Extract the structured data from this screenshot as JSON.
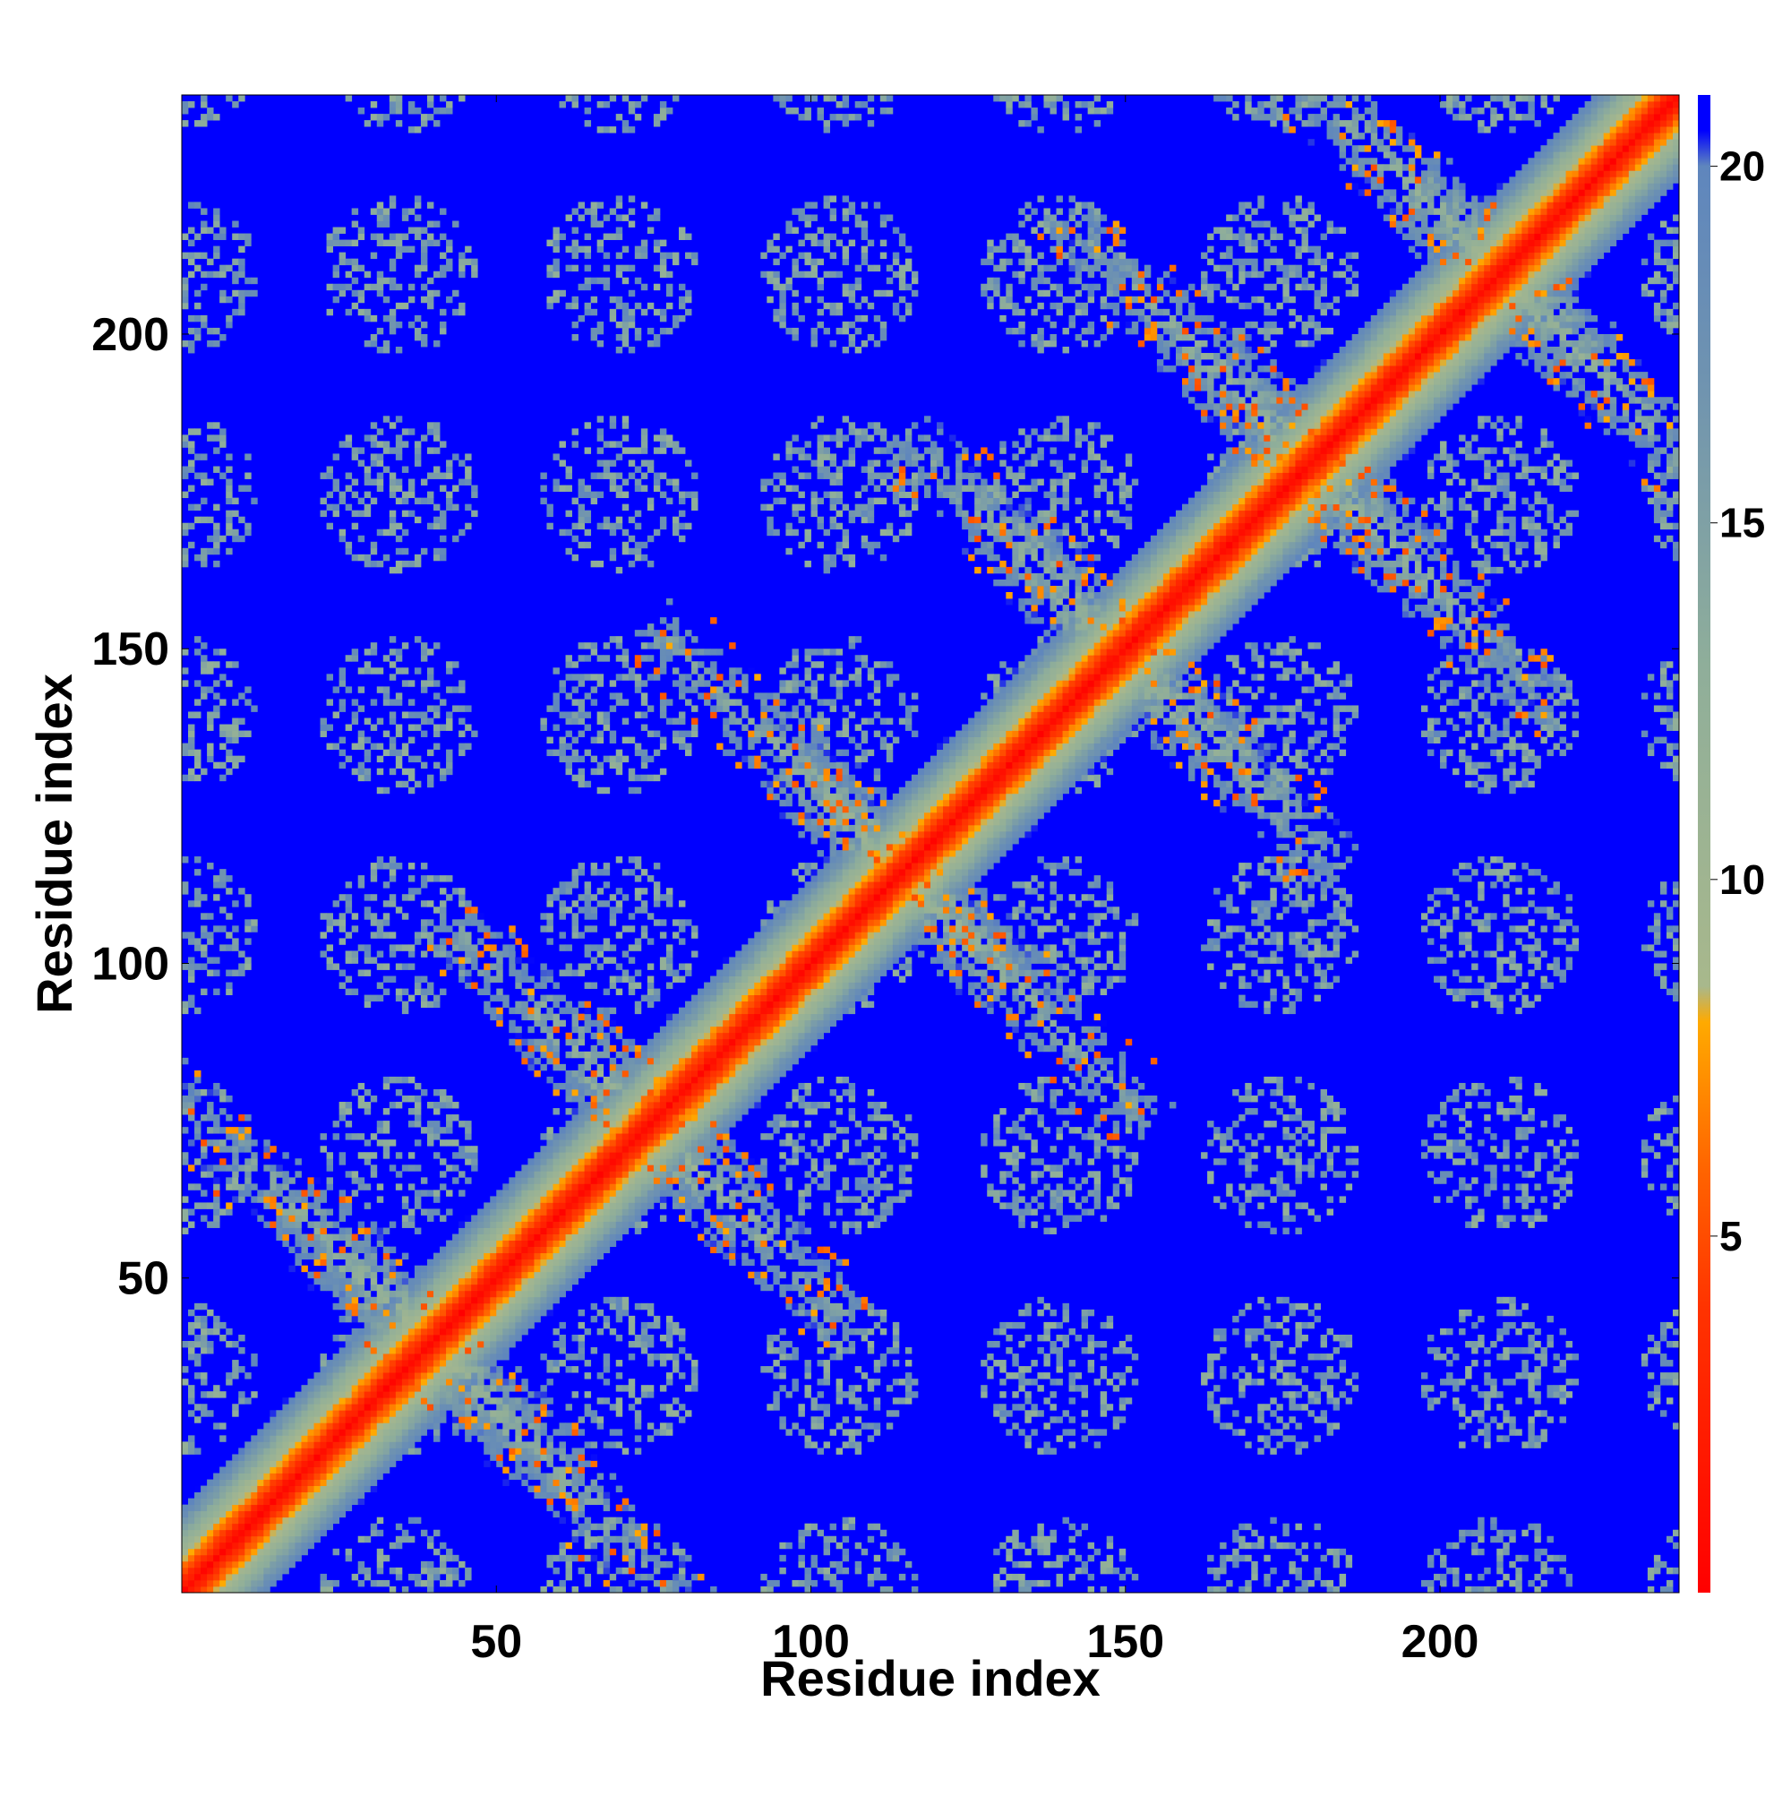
{
  "chart_data": {
    "type": "heatmap",
    "title": "",
    "xlabel": "Residue index",
    "ylabel": "Residue index",
    "n_residues": 238,
    "xlim": [
      1,
      238
    ],
    "ylim": [
      1,
      238
    ],
    "x_ticks": [
      50,
      100,
      150,
      200
    ],
    "y_ticks": [
      50,
      100,
      150,
      200
    ],
    "colorbar": {
      "range": [
        0,
        21
      ],
      "ticks": [
        5,
        10,
        15,
        20
      ],
      "stops": [
        {
          "v": 0,
          "color": "#ff0000"
        },
        {
          "v": 4,
          "color": "#ff3300"
        },
        {
          "v": 6,
          "color": "#ff6600"
        },
        {
          "v": 8,
          "color": "#ffaa00"
        },
        {
          "v": 8.5,
          "color": "#a8b88c"
        },
        {
          "v": 13,
          "color": "#8fae9a"
        },
        {
          "v": 17,
          "color": "#6f93b0"
        },
        {
          "v": 20,
          "color": "#5f86bd"
        },
        {
          "v": 20.5,
          "color": "#0000ff"
        }
      ]
    },
    "background_color": "#0000ff",
    "symmetric": true,
    "features": [
      {
        "kind": "diagonal",
        "description": "main diagonal contacts"
      },
      {
        "kind": "anti-diagonal-band",
        "center": [
          40,
          40
        ],
        "half_length": 28
      },
      {
        "kind": "anti-diagonal-band",
        "center": [
          75,
          75
        ],
        "half_length": 20
      },
      {
        "kind": "anti-diagonal-band",
        "center": [
          115,
          115
        ],
        "half_length": 25
      },
      {
        "kind": "anti-diagonal-band",
        "center": [
          150,
          150
        ],
        "half_length": 22
      },
      {
        "kind": "anti-diagonal-band",
        "center": [
          180,
          180
        ],
        "half_length": 25
      },
      {
        "kind": "anti-diagonal-band",
        "center": [
          210,
          210
        ],
        "half_length": 20
      }
    ]
  }
}
